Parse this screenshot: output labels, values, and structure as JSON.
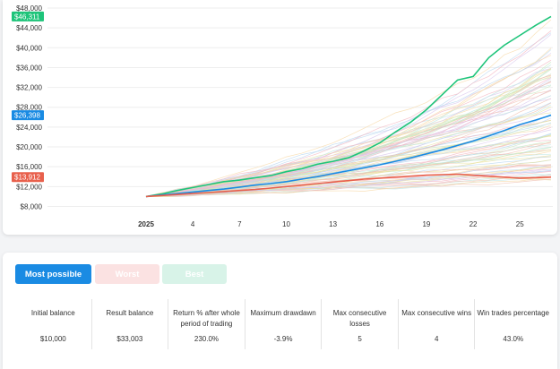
{
  "chart_data": {
    "type": "line",
    "y_ticks": [
      "$8,000",
      "$12,000",
      "$16,000",
      "$20,000",
      "$24,000",
      "$28,000",
      "$32,000",
      "$36,000",
      "$40,000",
      "$44,000",
      "$48,000"
    ],
    "x_ticks": [
      "2025",
      "4",
      "7",
      "10",
      "13",
      "16",
      "19",
      "22",
      "25"
    ],
    "ylim": [
      7000,
      48000
    ],
    "xlim": [
      0,
      26
    ],
    "grid": true,
    "series": [
      {
        "role": "best",
        "color": "#1ec47a",
        "final_label": "$46,311",
        "values": [
          10000,
          10500,
          11200,
          11800,
          12400,
          13000,
          13300,
          13800,
          14200,
          15000,
          15600,
          16500,
          17100,
          17800,
          19200,
          20800,
          23000,
          25000,
          27500,
          30500,
          33500,
          34200,
          38000,
          40500,
          42500,
          44500,
          46311
        ]
      },
      {
        "role": "most",
        "color": "#1a8be3",
        "final_label": "$26,398",
        "values": [
          10000,
          10300,
          10600,
          10900,
          11200,
          11500,
          11900,
          12300,
          12600,
          13000,
          13500,
          14000,
          14600,
          15200,
          15800,
          16400,
          17100,
          17800,
          18600,
          19400,
          20300,
          21200,
          22200,
          23300,
          24500,
          25400,
          26398
        ]
      },
      {
        "role": "worst",
        "color": "#e8604c",
        "final_label": "$13,912",
        "values": [
          10000,
          10200,
          10400,
          10600,
          10800,
          11000,
          11200,
          11400,
          11700,
          12000,
          12300,
          12600,
          12900,
          13200,
          13500,
          13700,
          13900,
          14100,
          14300,
          14400,
          14500,
          14300,
          14100,
          13900,
          13700,
          13800,
          13912
        ]
      }
    ]
  },
  "tabs": {
    "most": "Most possible",
    "worst": "Worst",
    "best": "Best"
  },
  "stats": [
    {
      "label": "Initial balance",
      "value": "$10,000"
    },
    {
      "label": "Result balance",
      "value": "$33,003"
    },
    {
      "label": "Return % after whole period of trading",
      "value": "230.0%"
    },
    {
      "label": "Maximum drawdawn",
      "value": "-3.9%"
    },
    {
      "label": "Max consecutive losses",
      "value": "5"
    },
    {
      "label": "Max consecutive wins",
      "value": "4"
    },
    {
      "label": "Win trades percentage",
      "value": "43.0%"
    }
  ]
}
